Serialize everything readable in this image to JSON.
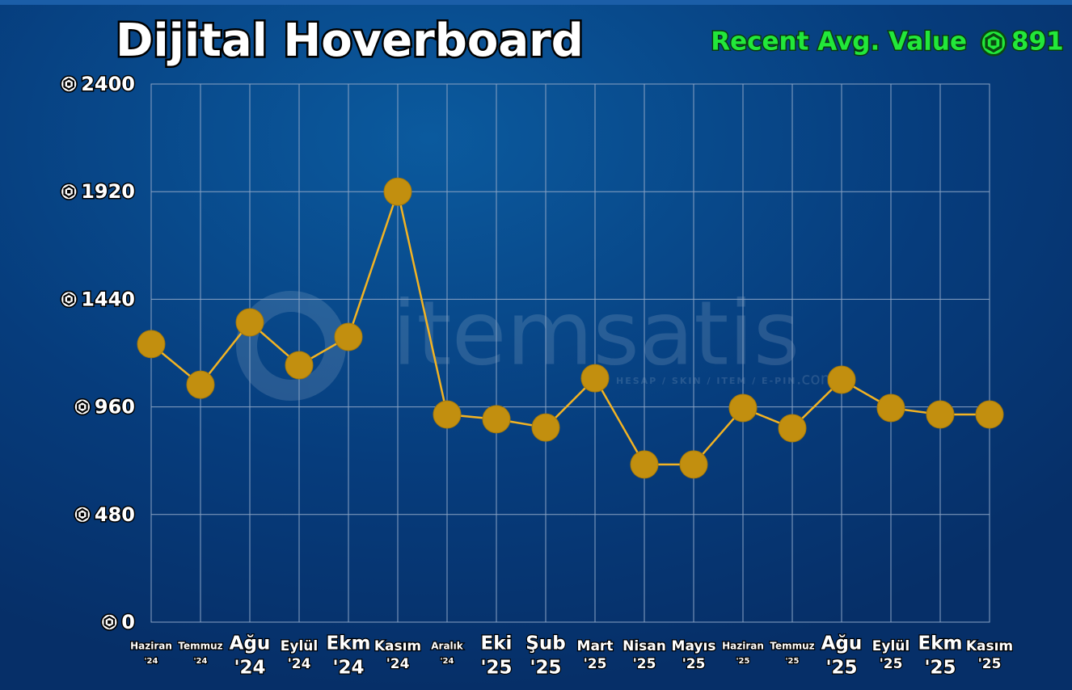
{
  "chart_data": {
    "type": "line",
    "title": "Dijital Hoverboard",
    "recent_label": "Recent Avg. Value",
    "recent_value": 891,
    "watermark": "itemsatis",
    "watermark_sub": "HESAP / SKIN / ITEM / E-PIN",
    "watermark_domain": ".com",
    "categories": [
      [
        "Haziran",
        "'24"
      ],
      [
        "Temmuz",
        "'24"
      ],
      [
        "Ağu",
        "'24"
      ],
      [
        "Eylül",
        "'24"
      ],
      [
        "Ekm",
        "'24"
      ],
      [
        "Kasım",
        "'24"
      ],
      [
        "Aralık",
        "'24"
      ],
      [
        "Eki",
        "'25"
      ],
      [
        "Şub",
        "'25"
      ],
      [
        "Mart",
        "'25"
      ],
      [
        "Nisan",
        "'25"
      ],
      [
        "Mayıs",
        "'25"
      ],
      [
        "Haziran",
        "'25"
      ],
      [
        "Temmuz",
        "'25"
      ],
      [
        "Ağu",
        "'25"
      ],
      [
        "Eylül",
        "'25"
      ],
      [
        "Ekm",
        "'25"
      ],
      [
        "Kasım",
        "'25"
      ]
    ],
    "values": [
      1240,
      1059,
      1337,
      1146,
      1272,
      1920,
      926,
      905,
      868,
      1088,
      703,
      703,
      955,
      865,
      1081,
      955,
      926,
      926
    ],
    "color": "#f2b323",
    "marker_color": "#c28f0f",
    "ylim": [
      0,
      2400
    ],
    "yticks": [
      0,
      480,
      960,
      1440,
      1920,
      2400
    ],
    "grid": true
  }
}
